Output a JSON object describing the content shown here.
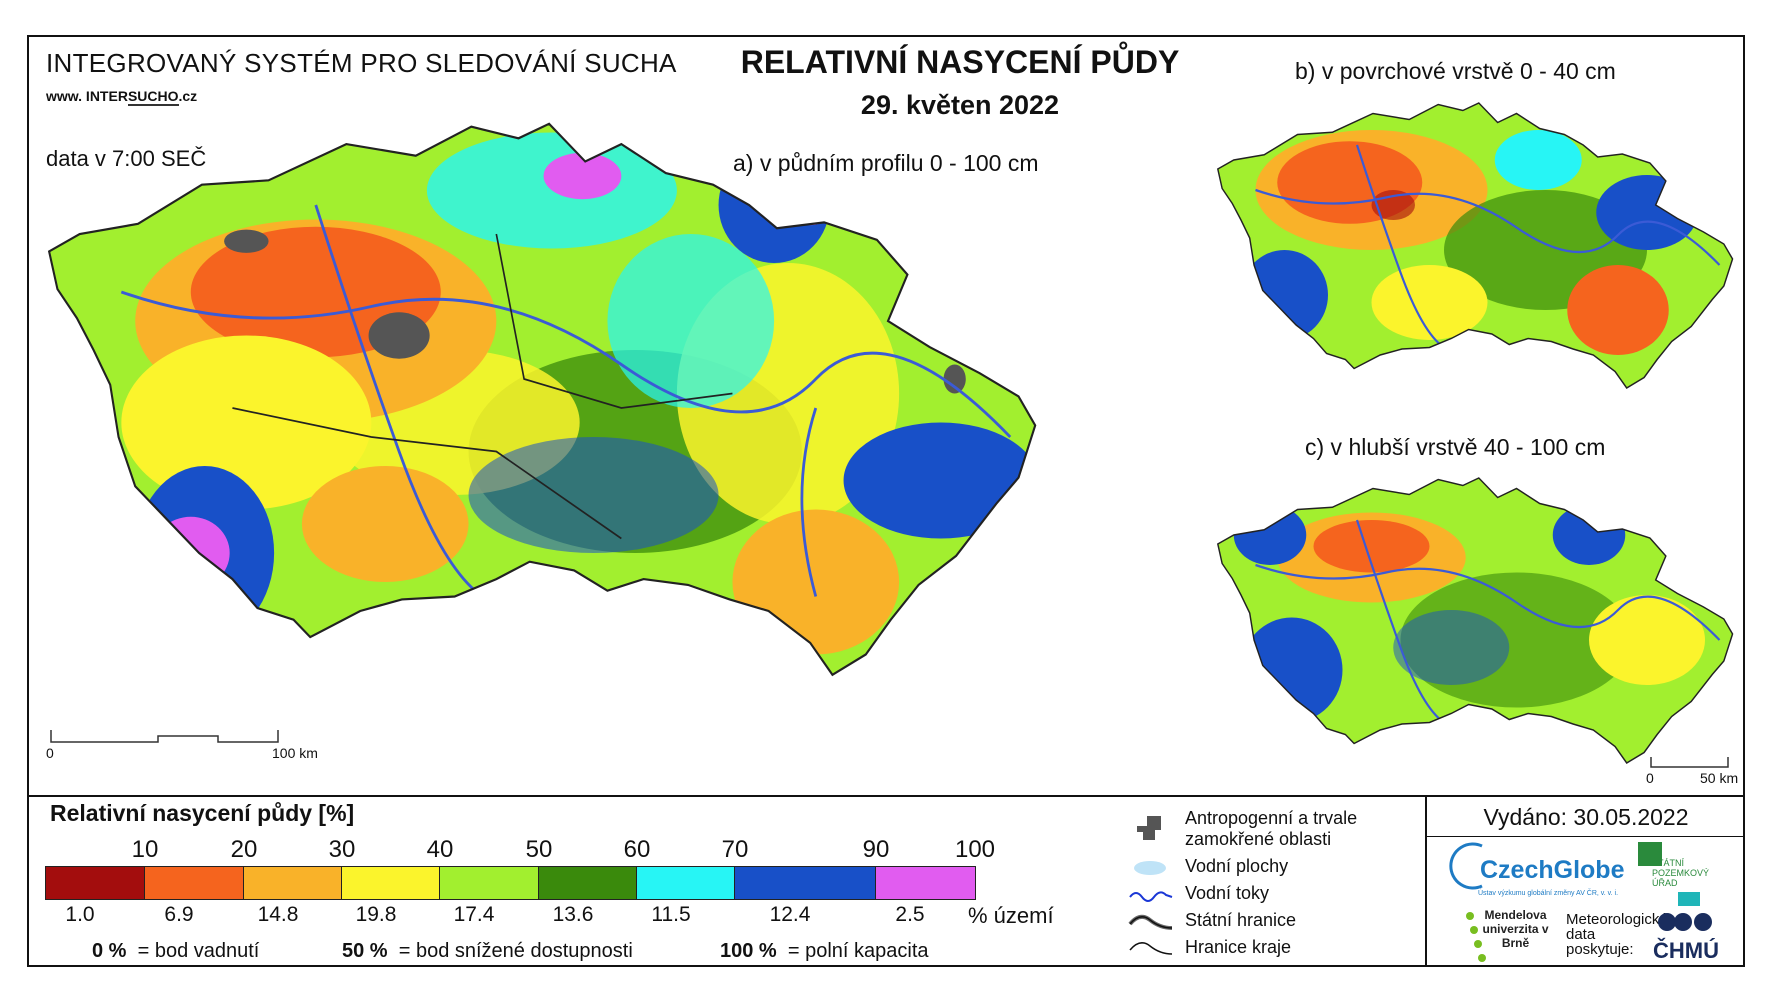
{
  "header": {
    "org": "INTEGROVANÝ SYSTÉM PRO SLEDOVÁNÍ SUCHA",
    "url_prefix": "www. INTER",
    "url_highlight": "SUCHO",
    "url_suffix": ".cz",
    "data_time": "data v 7:00 SEČ"
  },
  "title": {
    "main": "RELATIVNÍ NASYCENÍ PŮDY",
    "date": "29. květen 2022"
  },
  "maps": {
    "a_label": "a) v půdním profilu 0 - 100 cm",
    "b_label": "b) v povrchové vrstvě 0 - 40 cm",
    "c_label": "c) v hlubší vrstvě 40 - 100 cm",
    "scale_main": {
      "start": "0",
      "end": "100 km"
    },
    "scale_small": {
      "start": "0",
      "end": "50 km"
    }
  },
  "legend": {
    "title": "Relativní nasycení půdy [%]",
    "ticks": [
      "10",
      "20",
      "30",
      "40",
      "50",
      "60",
      "70",
      "90",
      "100"
    ],
    "classes": [
      {
        "color": "#a30d0d",
        "share": "1.0"
      },
      {
        "color": "#f5641e",
        "share": "6.9"
      },
      {
        "color": "#f9b229",
        "share": "14.8"
      },
      {
        "color": "#fbf42c",
        "share": "19.8"
      },
      {
        "color": "#a2ef2f",
        "share": "17.4"
      },
      {
        "color": "#3a8a0c",
        "share": "13.6"
      },
      {
        "color": "#27f5f5",
        "share": "11.5"
      },
      {
        "color": "#1850c8",
        "share": "12.4"
      },
      {
        "color": "#e15cf0",
        "share": "2.5"
      }
    ],
    "share_unit": "% území",
    "definitions": [
      {
        "value": "0 %",
        "text": "= bod vadnutí"
      },
      {
        "value": "50 %",
        "text": "= bod snížené dostupnosti"
      },
      {
        "value": "100 %",
        "text": "= polní kapacita"
      }
    ],
    "symbols": {
      "anthropogenic": "Antropogenní a trvale zamokřené oblasti",
      "water_bodies": "Vodní plochy",
      "rivers": "Vodní toky",
      "state_border": "Státní hranice",
      "region_border": "Hranice kraje"
    }
  },
  "issued": "Vydáno: 30.05.2022",
  "logos": {
    "czechglobe": "CzechGlobe",
    "czechglobe_sub": "Ústav výzkumu globální změny AV ČR, v. v. i.",
    "spu": "STÁTNÍ POZEMKOVÝ ÚŘAD",
    "mendel": "Mendelova univerzita v Brně",
    "chmu_text": "Meteorologická data poskytuje:",
    "chmu": "ČHMÚ"
  }
}
